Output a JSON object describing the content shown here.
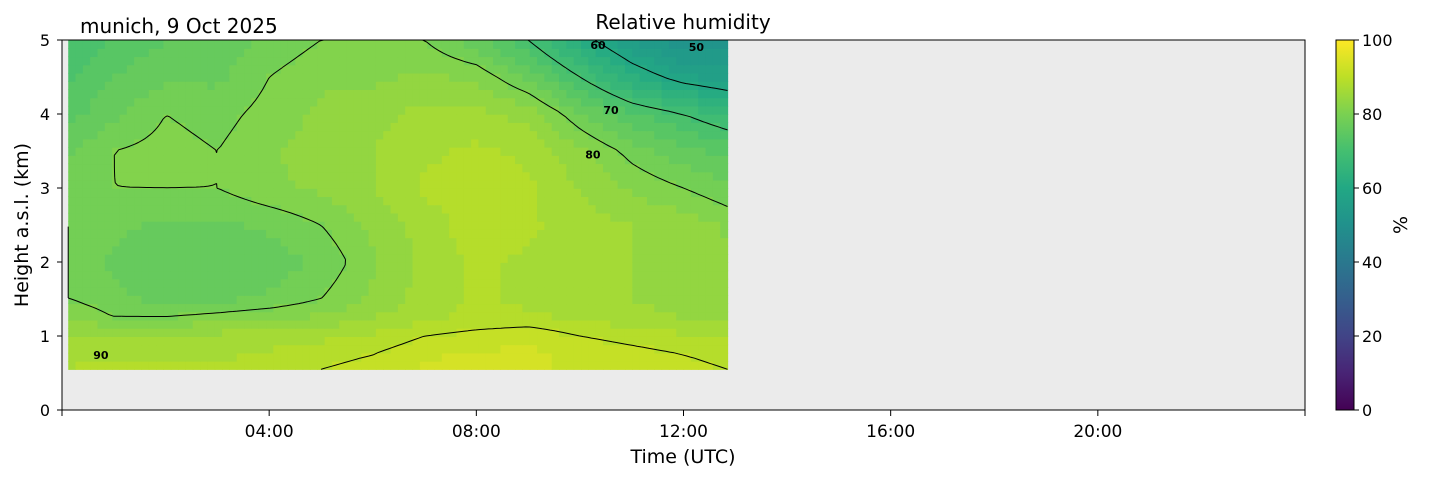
{
  "chart_data": {
    "type": "heatmap",
    "title": "Relative humidity",
    "subtitle": "munich, 9 Oct 2025",
    "xlabel": "Time (UTC)",
    "ylabel": "Height a.s.l. (km)",
    "xlim": [
      0,
      24
    ],
    "ylim": [
      0,
      5
    ],
    "x_ticks": [
      4,
      8,
      12,
      16,
      20
    ],
    "x_tick_labels": [
      "04:00",
      "08:00",
      "12:00",
      "16:00",
      "20:00"
    ],
    "y_ticks": [
      0,
      1,
      2,
      3,
      4,
      5
    ],
    "y_tick_labels": [
      "0",
      "1",
      "2",
      "3",
      "4",
      "5"
    ],
    "colorbar": {
      "label": "%",
      "range": [
        0,
        100
      ],
      "ticks": [
        0,
        20,
        40,
        60,
        80,
        100
      ],
      "tick_labels": [
        "0",
        "20",
        "40",
        "60",
        "80",
        "100"
      ],
      "colormap": "viridis"
    },
    "no_data_color": "#ebebeb",
    "data_extent": {
      "x": [
        0.12,
        12.85
      ],
      "y": [
        0.55,
        5.0
      ]
    },
    "contour_levels": [
      50,
      60,
      70,
      80,
      90
    ],
    "contour_labels": [
      {
        "text": "90",
        "x": 0.75,
        "y": 0.69
      },
      {
        "text": "80",
        "x": 10.25,
        "y": 3.4
      },
      {
        "text": "70",
        "x": 10.6,
        "y": 4.0
      },
      {
        "text": "50",
        "x": 12.25,
        "y": 4.85
      },
      {
        "text": "60",
        "x": 10.35,
        "y": 4.88
      }
    ],
    "cols_x": [
      0.12,
      1.0,
      2.0,
      3.0,
      4.0,
      5.0,
      6.0,
      7.0,
      8.0,
      9.0,
      10.0,
      11.0,
      12.0,
      12.85
    ],
    "rows_y": [
      0.55,
      0.75,
      1.0,
      1.25,
      1.5,
      2.0,
      2.5,
      3.0,
      3.5,
      4.0,
      4.5,
      5.0
    ],
    "rh_grid": [
      [
        88,
        88,
        88,
        88,
        89,
        90,
        91,
        93,
        93,
        93,
        92,
        91,
        91,
        90
      ],
      [
        86,
        87,
        87,
        87,
        88,
        89,
        90,
        92,
        93,
        93,
        92,
        91,
        90,
        89
      ],
      [
        85,
        85,
        86,
        86,
        86,
        87,
        88,
        90,
        91,
        92,
        90,
        89,
        88,
        87
      ],
      [
        83,
        80,
        80,
        81,
        82,
        83,
        85,
        87,
        88,
        88,
        87,
        86,
        85,
        84
      ],
      [
        80,
        78,
        77,
        77,
        78,
        80,
        83,
        86,
        88,
        87,
        86,
        85,
        84,
        83
      ],
      [
        80,
        77,
        76,
        76,
        76,
        78,
        82,
        86,
        88,
        87,
        86,
        85,
        84,
        83
      ],
      [
        80,
        78,
        77,
        77,
        78,
        80,
        83,
        86,
        89,
        88,
        86,
        85,
        84,
        82
      ],
      [
        79,
        80,
        80,
        80,
        82,
        83,
        85,
        88,
        89,
        88,
        85,
        82,
        80,
        78
      ],
      [
        77,
        80,
        81,
        80,
        82,
        84,
        85,
        87,
        88,
        87,
        83,
        79,
        76,
        74
      ],
      [
        74,
        77,
        80,
        79,
        81,
        83,
        84,
        86,
        86,
        84,
        78,
        73,
        70,
        67
      ],
      [
        72,
        75,
        77,
        77,
        80,
        82,
        82,
        83,
        82,
        77,
        70,
        63,
        58,
        56
      ],
      [
        70,
        73,
        75,
        76,
        78,
        80,
        80,
        80,
        76,
        70,
        62,
        55,
        50,
        52
      ]
    ]
  }
}
